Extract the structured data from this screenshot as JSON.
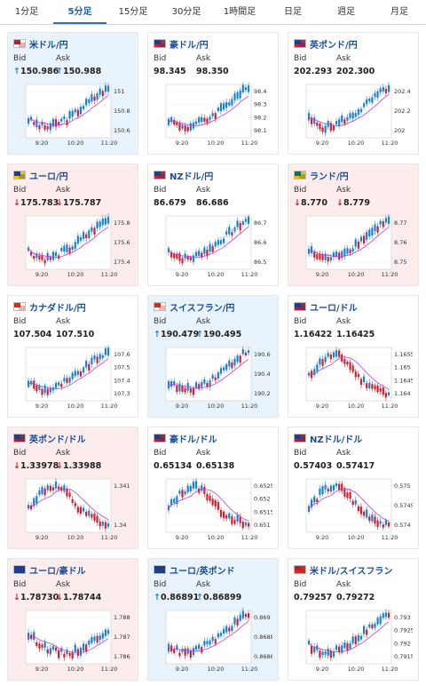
{
  "tabs": [
    {
      "label": "1分足",
      "active": false
    },
    {
      "label": "5分足",
      "active": true
    },
    {
      "label": "15分足",
      "active": false
    },
    {
      "label": "30分足",
      "active": false
    },
    {
      "label": "1時間足",
      "active": false
    },
    {
      "label": "日足",
      "active": false
    },
    {
      "label": "週足",
      "active": false
    },
    {
      "label": "月足",
      "active": false
    }
  ],
  "bid_label": "Bid",
  "ask_label": "Ask",
  "colors": {
    "up": "#1a7fd6",
    "down": "#d01f2e",
    "ma": "#c23bd6",
    "up_bg": "#e8f3fc",
    "down_bg": "#fdecec"
  },
  "cards": [
    {
      "title": "米ドル/円",
      "flag": [
        "#b22234",
        "#ffffff"
      ],
      "dir": "up",
      "bid": "150.986",
      "ask": "150.988",
      "xt": [
        "9:20",
        "10:20",
        "11:20"
      ],
      "yt": [
        "151",
        "150.8",
        "150.6"
      ],
      "trend": "up"
    },
    {
      "title": "豪ドル/円",
      "flag": [
        "#1d3d8f",
        "#cc2233"
      ],
      "dir": "flat",
      "bid": "98.345",
      "ask": "98.350",
      "xt": [
        "9:20",
        "10:20",
        "11:20"
      ],
      "yt": [
        "98.4",
        "98.3",
        "98.2",
        "98.1"
      ],
      "trend": "up"
    },
    {
      "title": "英ポンド/円",
      "flag": [
        "#1d3d8f",
        "#cc2233"
      ],
      "dir": "flat",
      "bid": "202.293",
      "ask": "202.300",
      "xt": [
        "9:20",
        "10:20",
        "11:20"
      ],
      "yt": [
        "202.4",
        "202.2",
        "202"
      ],
      "trend": "up"
    },
    {
      "title": "ユーロ/円",
      "flag": [
        "#1d3d8f",
        "#f2c500"
      ],
      "dir": "down",
      "bid": "175.783",
      "ask": "175.787",
      "xt": [
        "9:20",
        "10:20",
        "11:20"
      ],
      "yt": [
        "175.8",
        "175.6",
        "175.4"
      ],
      "trend": "up"
    },
    {
      "title": "NZドル/円",
      "flag": [
        "#1d3d8f",
        "#cc2233"
      ],
      "dir": "flat",
      "bid": "86.679",
      "ask": "86.686",
      "xt": [
        "9:20",
        "10:20",
        "11:20"
      ],
      "yt": [
        "86.7",
        "86.6",
        "86.5"
      ],
      "trend": "up"
    },
    {
      "title": "ランド/円",
      "flag": [
        "#007a4d",
        "#ffb612"
      ],
      "dir": "down",
      "bid": "8.770",
      "ask": "8.779",
      "xt": [
        "9:20",
        "10:20",
        "11:20"
      ],
      "yt": [
        "8.77",
        "8.76",
        "8.75"
      ],
      "trend": "up"
    },
    {
      "title": "カナダドル/円",
      "flag": [
        "#d52b1e",
        "#ffffff"
      ],
      "dir": "flat",
      "bid": "107.504",
      "ask": "107.510",
      "xt": [
        "9:20",
        "10:20",
        "11:20"
      ],
      "yt": [
        "107.6",
        "107.5",
        "107.4",
        "107.3"
      ],
      "trend": "up"
    },
    {
      "title": "スイスフラン/円",
      "flag": [
        "#d52b1e",
        "#ffffff"
      ],
      "dir": "up",
      "bid": "190.479",
      "ask": "190.495",
      "xt": [
        "9:20",
        "10:20",
        "11:20"
      ],
      "yt": [
        "190.6",
        "190.4",
        "190.2"
      ],
      "trend": "up"
    },
    {
      "title": "ユーロ/ドル",
      "flag": [
        "#1d3d8f",
        "#b22234"
      ],
      "dir": "flat",
      "bid": "1.16422",
      "ask": "1.16425",
      "xt": [
        "9:20",
        "10:20",
        "11:20"
      ],
      "yt": [
        "1.1655",
        "1.165",
        "1.1645",
        "1.164"
      ],
      "trend": "humpdown"
    },
    {
      "title": "英ポンド/ドル",
      "flag": [
        "#1d3d8f",
        "#b22234"
      ],
      "dir": "down",
      "bid": "1.33978",
      "ask": "1.33988",
      "xt": [
        "9:20",
        "10:20",
        "11:20"
      ],
      "yt": [
        "1.341",
        "1.34"
      ],
      "trend": "humpdown"
    },
    {
      "title": "豪ドル/ドル",
      "flag": [
        "#1d3d8f",
        "#b22234"
      ],
      "dir": "flat",
      "bid": "0.65134",
      "ask": "0.65138",
      "xt": [
        "9:20",
        "10:20",
        "11:20"
      ],
      "yt": [
        "0.6525",
        "0.652",
        "0.6515",
        "0.651"
      ],
      "trend": "humpdown"
    },
    {
      "title": "NZドル/ドル",
      "flag": [
        "#1d3d8f",
        "#b22234"
      ],
      "dir": "flat",
      "bid": "0.57403",
      "ask": "0.57417",
      "xt": [
        "9:20",
        "10:20",
        "11:20"
      ],
      "yt": [
        "0.575",
        "0.5745",
        "0.574"
      ],
      "trend": "humpdown"
    },
    {
      "title": "ユーロ/豪ドル",
      "flag": [
        "#1d3d8f",
        "#1d3d8f"
      ],
      "dir": "down",
      "bid": "1.78730",
      "ask": "1.78744",
      "xt": [
        "9:20",
        "10:20",
        "11:20"
      ],
      "yt": [
        "1.788",
        "1.787",
        "1.786"
      ],
      "trend": "dipup"
    },
    {
      "title": "ユーロ/英ポンド",
      "flag": [
        "#1d3d8f",
        "#1d3d8f"
      ],
      "dir": "up",
      "bid": "0.86891",
      "ask": "0.86899",
      "xt": [
        "9:20",
        "10:20",
        "11:20"
      ],
      "yt": [
        "0.869",
        "0.8688",
        "0.8686"
      ],
      "trend": "up"
    },
    {
      "title": "米ドル/スイスフラン",
      "flag": [
        "#b22234",
        "#d52b1e"
      ],
      "dir": "flat",
      "bid": "0.79257",
      "ask": "0.79272",
      "xt": [
        "9:20",
        "10:20",
        "11:20"
      ],
      "yt": [
        "0.793",
        "0.7925",
        "0.792",
        "0.7915"
      ],
      "trend": "up"
    }
  ]
}
